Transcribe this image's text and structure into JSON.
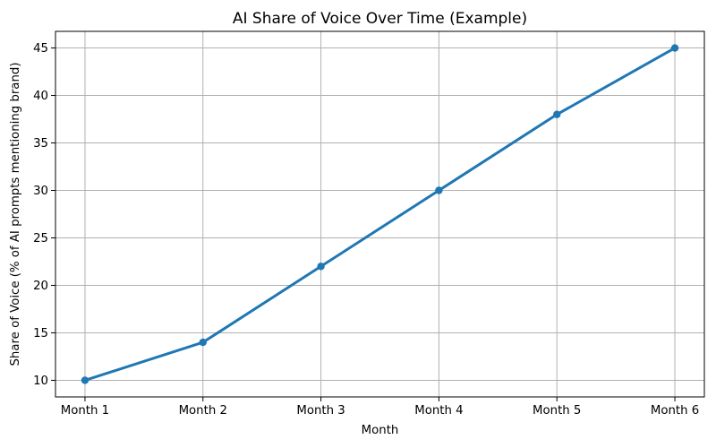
{
  "chart_data": {
    "type": "line",
    "title": "AI Share of Voice Over Time (Example)",
    "xlabel": "Month",
    "ylabel": "Share of Voice (% of AI prompts mentioning brand)",
    "categories": [
      "Month 1",
      "Month 2",
      "Month 3",
      "Month 4",
      "Month 5",
      "Month 6"
    ],
    "series": [
      {
        "name": "AI Share of Voice",
        "values": [
          10,
          14,
          22,
          30,
          38,
          45
        ]
      }
    ],
    "yticks": [
      10,
      15,
      20,
      25,
      30,
      35,
      40,
      45
    ],
    "ylim": [
      8.25,
      46.75
    ],
    "xlim": [
      0.75,
      6.25
    ],
    "grid": true,
    "legend_position": "none",
    "line_color": "#1f77b4",
    "marker": "circle",
    "marker_color": "#1f77b4",
    "grid_color": "#b0b0b0",
    "spine_color": "#000000",
    "background_color": "#ffffff"
  }
}
